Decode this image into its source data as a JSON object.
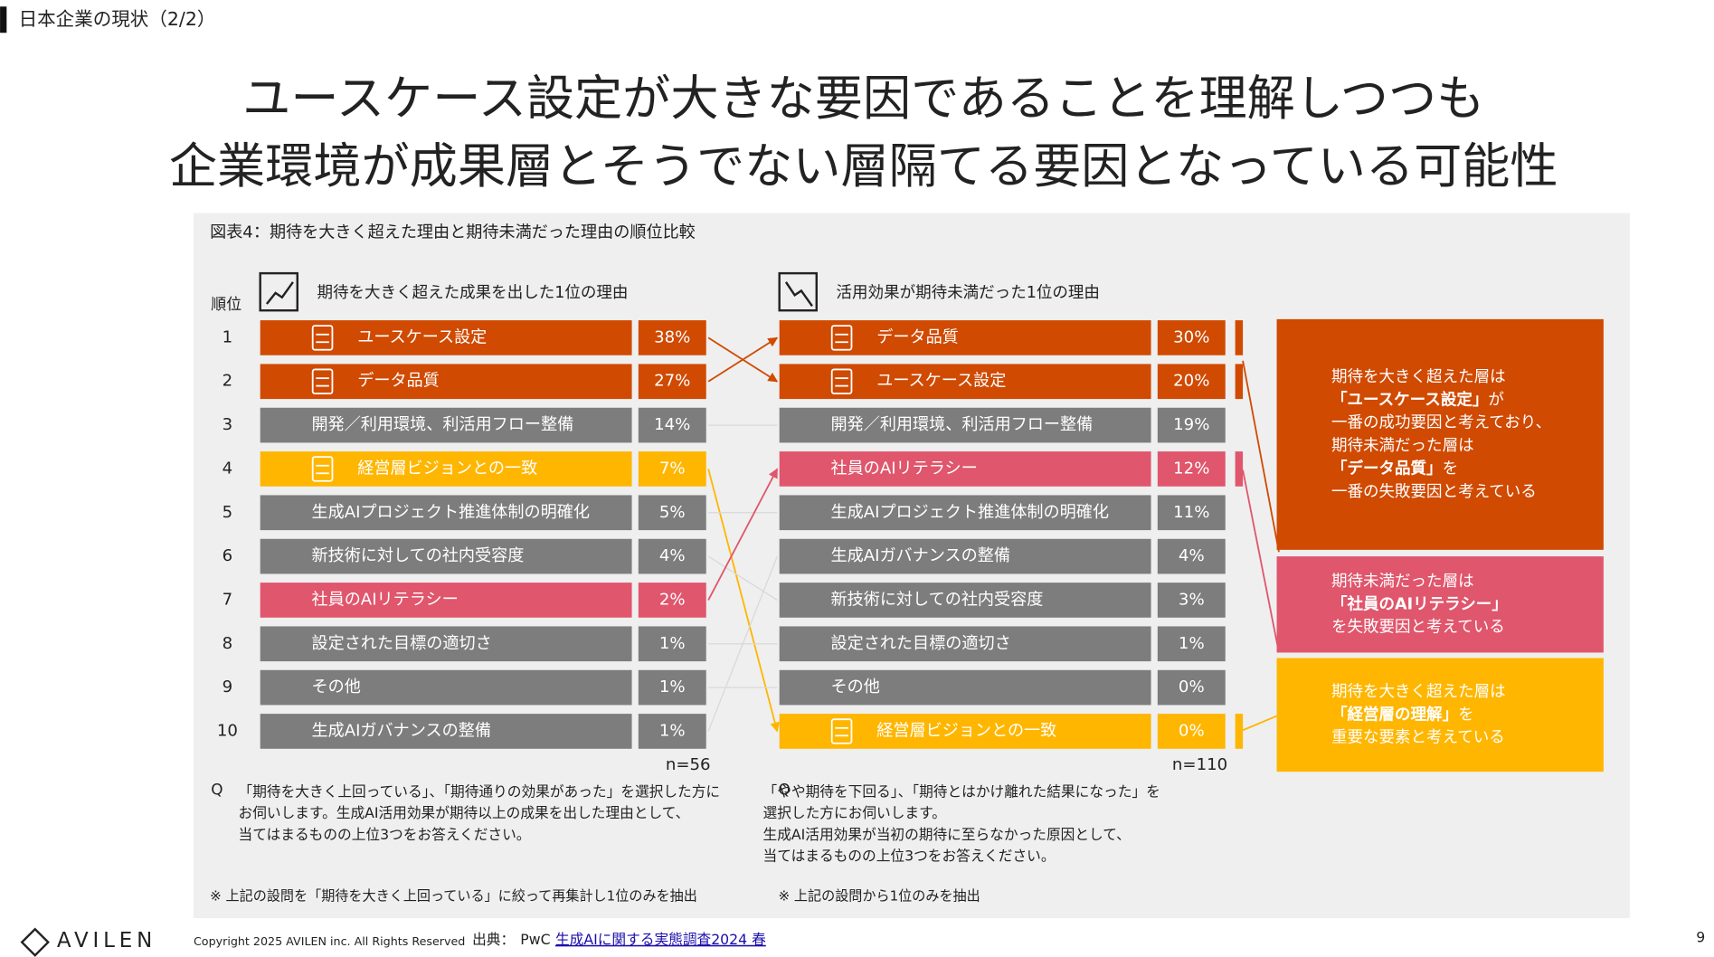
{
  "header": {
    "section": "日本企業の現状（2/2）",
    "title_lines": [
      "ユースケース設定が大きな要因であることを理解しつつも",
      "企業環境が成果層とそうでない層隔てる要因となっている可能性"
    ]
  },
  "figure": {
    "caption": "図表4：期待を大きく超えた理由と期待未満だった理由の順位比較",
    "rank_header": "順位",
    "ranks": [
      "1",
      "2",
      "3",
      "4",
      "5",
      "6",
      "7",
      "8",
      "9",
      "10"
    ],
    "left": {
      "heading": "期待を大きく超えた成果を出した1位の理由",
      "rows": [
        {
          "label": "ユースケース設定",
          "value": "38%",
          "color": "#d04a02",
          "icon": true
        },
        {
          "label": "データ品質",
          "value": "27%",
          "color": "#d04a02",
          "icon": true
        },
        {
          "label": "開発／利用環境、利活用フロー整備",
          "value": "14%",
          "color": "#7d7d7d"
        },
        {
          "label": "経営層ビジョンとの一致",
          "value": "7%",
          "color": "#ffb600",
          "icon": true
        },
        {
          "label": "生成AIプロジェクト推進体制の明確化",
          "value": "5%",
          "color": "#7d7d7d"
        },
        {
          "label": "新技術に対しての社内受容度",
          "value": "4%",
          "color": "#7d7d7d"
        },
        {
          "label": "社員のAIリテラシー",
          "value": "2%",
          "color": "#e0566c"
        },
        {
          "label": "設定された目標の適切さ",
          "value": "1%",
          "color": "#7d7d7d"
        },
        {
          "label": "その他",
          "value": "1%",
          "color": "#7d7d7d"
        },
        {
          "label": "生成AIガバナンスの整備",
          "value": "1%",
          "color": "#7d7d7d"
        }
      ],
      "n": "n=56",
      "question": [
        "「期待を大きく上回っている」、「期待通りの効果があった」を選択した方に",
        "お伺いします。生成AI活用効果が期待以上の成果を出した理由として、",
        "当てはまるものの上位3つをお答えください。"
      ],
      "note": "※ 上記の設問を「期待を大きく上回っている」に絞って再集計し1位のみを抽出"
    },
    "right": {
      "heading": "活用効果が期待未満だった1位の理由",
      "rows": [
        {
          "label": "データ品質",
          "value": "30%",
          "color": "#d04a02",
          "icon": true
        },
        {
          "label": "ユースケース設定",
          "value": "20%",
          "color": "#d04a02",
          "icon": true
        },
        {
          "label": "開発／利用環境、利活用フロー整備",
          "value": "19%",
          "color": "#7d7d7d"
        },
        {
          "label": "社員のAIリテラシー",
          "value": "12%",
          "color": "#e0566c"
        },
        {
          "label": "生成AIプロジェクト推進体制の明確化",
          "value": "11%",
          "color": "#7d7d7d"
        },
        {
          "label": "生成AIガバナンスの整備",
          "value": "4%",
          "color": "#7d7d7d"
        },
        {
          "label": "新技術に対しての社内受容度",
          "value": "3%",
          "color": "#7d7d7d"
        },
        {
          "label": "設定された目標の適切さ",
          "value": "1%",
          "color": "#7d7d7d"
        },
        {
          "label": "その他",
          "value": "0%",
          "color": "#7d7d7d"
        },
        {
          "label": "経営層ビジョンとの一致",
          "value": "0%",
          "color": "#ffb600",
          "icon": true
        }
      ],
      "n": "n=110",
      "question": [
        "「やや期待を下回る」、「期待とはかけ離れた結果になった」を",
        "選択した方にお伺いします。",
        "生成AI活用効果が当初の期待に至らなかった原因として、",
        "当てはまるものの上位3つをお答えください。"
      ],
      "note": "※ 上記の設問から1位のみを抽出"
    },
    "question_mark": "Q",
    "callouts": [
      {
        "color": "#d04a02",
        "lines": [
          {
            "text": "期待を大きく超えた層は"
          },
          {
            "strong": "「ユースケース設定」",
            "text": "が"
          },
          {
            "text": "一番の成功要因と考えており、"
          },
          {
            "text": "期待未満だった層は"
          },
          {
            "strong": "「データ品質」",
            "text": "を"
          },
          {
            "text": "一番の失敗要因と考えている"
          }
        ]
      },
      {
        "color": "#e0566c",
        "lines": [
          {
            "text": "期待未満だった層は"
          },
          {
            "strong": "「社員のAIリテラシー」"
          },
          {
            "text": "を失敗要因と考えている"
          }
        ]
      },
      {
        "color": "#ffb600",
        "lines": [
          {
            "text": "期待を大きく超えた層は"
          },
          {
            "strong": "「経営層の理解」",
            "text": "を"
          },
          {
            "text": "重要な要素と考えている"
          }
        ]
      }
    ]
  },
  "footer": {
    "logo": "AVILEN",
    "copyright": "Copyright 2025 AVILEN inc. All Rights Reserved",
    "source_label": "出典：",
    "source": "PwC",
    "link": "生成AIに関する実態調査2024 春",
    "page": "9"
  }
}
